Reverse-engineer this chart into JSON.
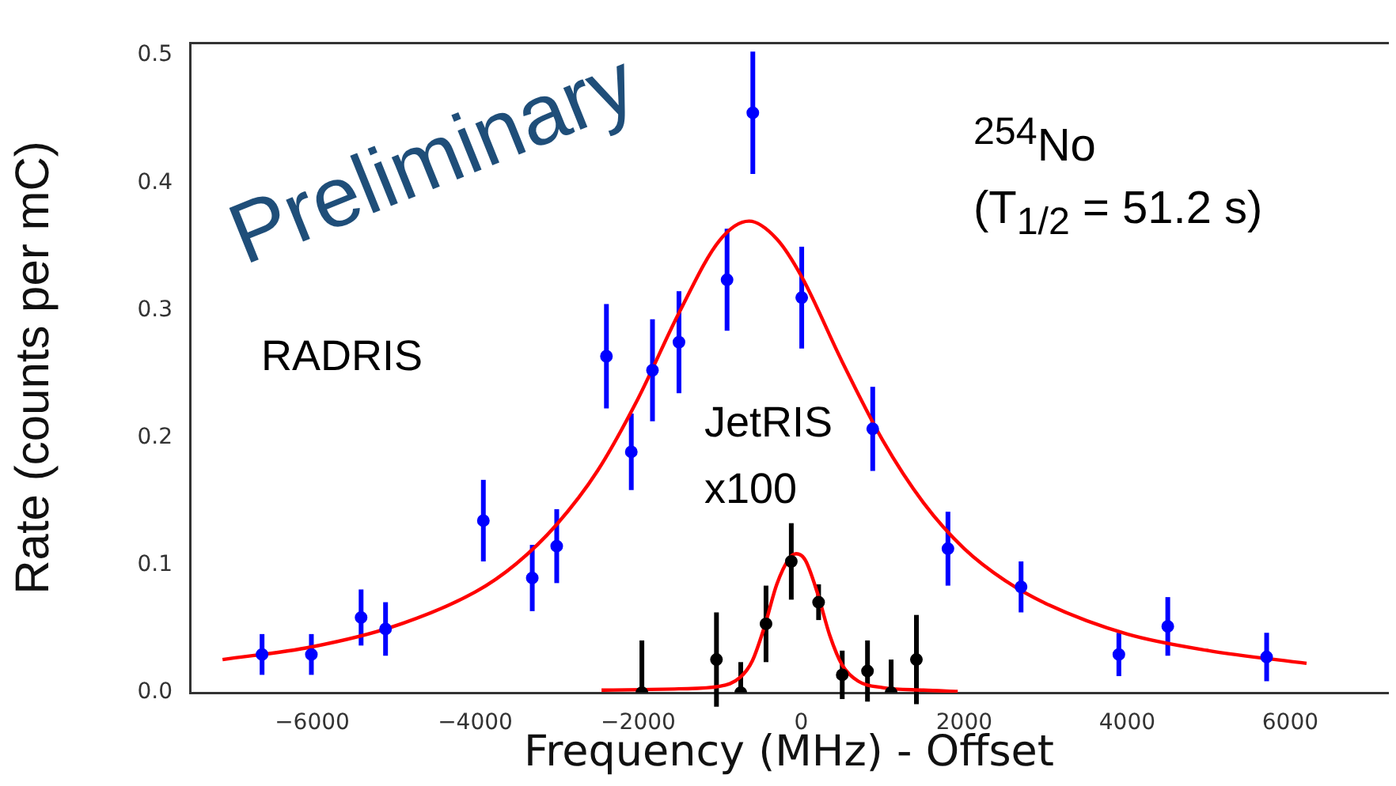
{
  "chart_data": {
    "type": "scatter",
    "xlabel": "Frequency (MHz) - Offset",
    "ylabel": "Rate (counts per mC)",
    "xlim": [
      -7500,
      7200
    ],
    "ylim": [
      0,
      0.51
    ],
    "xticks": [
      {
        "value": -6000,
        "label": "−6000"
      },
      {
        "value": -4000,
        "label": "−4000"
      },
      {
        "value": -2000,
        "label": "−2000"
      },
      0,
      2000,
      4000,
      6000
    ],
    "yticks": [
      {
        "value": 0,
        "label": "0.0"
      },
      0.1,
      0.2,
      0.3,
      0.4,
      0.5
    ],
    "grid": false,
    "marker": "circle",
    "annotations": [
      "Preliminary",
      "RADRIS",
      "JetRIS",
      "x100",
      "$^{254}$No",
      "(T$_{1/2}$ = 51.2 s)"
    ],
    "series": [
      {
        "type": "scatter",
        "color": "#0000ff",
        "x": [
          -6615,
          -6010,
          -5400,
          -5100,
          -3900,
          -3300,
          -3000,
          -2390,
          -2085,
          -1825,
          -1500,
          -910,
          -594,
          6,
          877,
          1800,
          2697,
          3897,
          4497,
          5710
        ],
        "values": [
          0.03,
          0.03,
          0.059,
          0.05,
          0.135,
          0.09,
          0.115,
          0.264,
          0.189,
          0.253,
          0.275,
          0.324,
          0.455,
          0.31,
          0.207,
          0.113,
          0.083,
          0.03,
          0.052,
          0.028
        ],
        "errors": [
          0.016,
          0.016,
          0.022,
          0.021,
          0.032,
          0.026,
          0.029,
          0.041,
          0.03,
          0.04,
          0.04,
          0.04,
          0.048,
          0.04,
          0.033,
          0.029,
          0.02,
          0.017,
          0.023,
          0.019
        ]
      },
      {
        "type": "line",
        "marker": "none",
        "color": "#ff0000",
        "x": [
          -7100,
          -6000,
          -5000,
          -4000,
          -3500,
          -3000,
          -2500,
          -2000,
          -1500,
          -1000,
          -640,
          -300,
          0,
          500,
          1000,
          1500,
          2000,
          2500,
          3000,
          4000,
          5000,
          6200
        ],
        "values": [
          0.026,
          0.036,
          0.052,
          0.079,
          0.101,
          0.132,
          0.174,
          0.231,
          0.298,
          0.355,
          0.37,
          0.356,
          0.327,
          0.26,
          0.198,
          0.149,
          0.113,
          0.088,
          0.07,
          0.046,
          0.033,
          0.023
        ]
      },
      {
        "type": "scatter",
        "color": "#000000",
        "x": [
          -1955,
          -1040,
          -742,
          -432,
          -122,
          213,
          503,
          813,
          1103,
          1413
        ],
        "values": [
          0,
          0.026,
          0,
          0.054,
          0.103,
          0.071,
          0.014,
          0.017,
          0,
          0.026
        ],
        "errors": [
          [
            0,
            0.041
          ],
          0.037,
          [
            0,
            0.024
          ],
          0.03,
          0.03,
          0.014,
          0.019,
          0.024,
          [
            0,
            0.026
          ],
          0.035
        ]
      },
      {
        "type": "line",
        "marker": "none",
        "color": "#ff0000",
        "x": [
          -2450,
          -1500,
          -1000,
          -750,
          -600,
          -450,
          -300,
          -150,
          -60,
          50,
          200,
          350,
          500,
          700,
          1000,
          1500,
          1920
        ],
        "values": [
          0.002,
          0.003,
          0.005,
          0.012,
          0.025,
          0.052,
          0.085,
          0.105,
          0.109,
          0.104,
          0.078,
          0.045,
          0.022,
          0.009,
          0.004,
          0.002,
          0.001
        ]
      }
    ]
  }
}
